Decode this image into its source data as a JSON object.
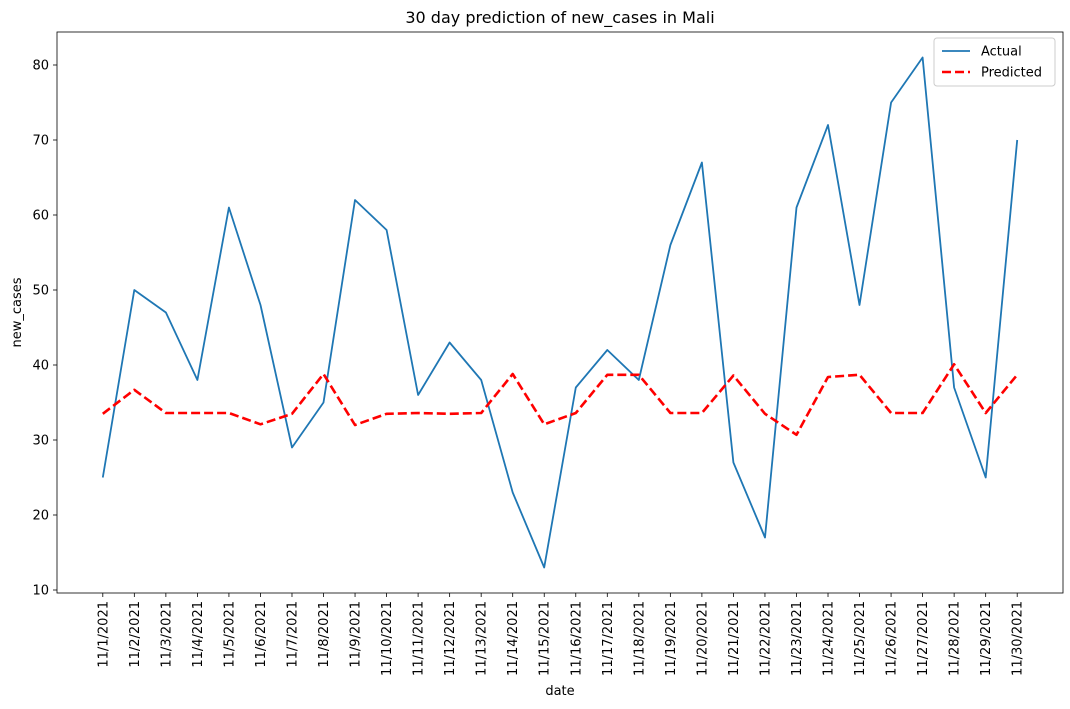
{
  "chart_data": {
    "type": "line",
    "title": "30 day prediction of new_cases in Mali",
    "xlabel": "date",
    "ylabel": "new_cases",
    "categories": [
      "11/1/2021",
      "11/2/2021",
      "11/3/2021",
      "11/4/2021",
      "11/5/2021",
      "11/6/2021",
      "11/7/2021",
      "11/8/2021",
      "11/9/2021",
      "11/10/2021",
      "11/11/2021",
      "11/12/2021",
      "11/13/2021",
      "11/14/2021",
      "11/15/2021",
      "11/16/2021",
      "11/17/2021",
      "11/18/2021",
      "11/19/2021",
      "11/20/2021",
      "11/21/2021",
      "11/22/2021",
      "11/23/2021",
      "11/24/2021",
      "11/25/2021",
      "11/26/2021",
      "11/27/2021",
      "11/28/2021",
      "11/29/2021",
      "11/30/2021"
    ],
    "series": [
      {
        "name": "Actual",
        "color": "#1f77b4",
        "style": "solid",
        "values": [
          25,
          50,
          47,
          38,
          61,
          48,
          29,
          35,
          62,
          58,
          36,
          43,
          38,
          23,
          13,
          37,
          42,
          38,
          56,
          67,
          27,
          17,
          61,
          72,
          48,
          75,
          81,
          37,
          25,
          70
        ]
      },
      {
        "name": "Predicted",
        "color": "#ff0000",
        "style": "dashed",
        "values": [
          33.5,
          36.7,
          33.6,
          33.6,
          33.6,
          32.1,
          33.5,
          38.8,
          32.0,
          33.5,
          33.6,
          33.5,
          33.6,
          38.8,
          32.1,
          33.6,
          38.7,
          38.7,
          33.6,
          33.6,
          38.6,
          33.5,
          30.7,
          38.4,
          38.7,
          33.6,
          33.6,
          40.1,
          33.6,
          38.7
        ]
      }
    ],
    "ylim": [
      9.6,
      84.4
    ],
    "yticks": [
      10,
      20,
      30,
      40,
      50,
      60,
      70,
      80
    ],
    "grid": false,
    "legend_position": "top-right"
  }
}
